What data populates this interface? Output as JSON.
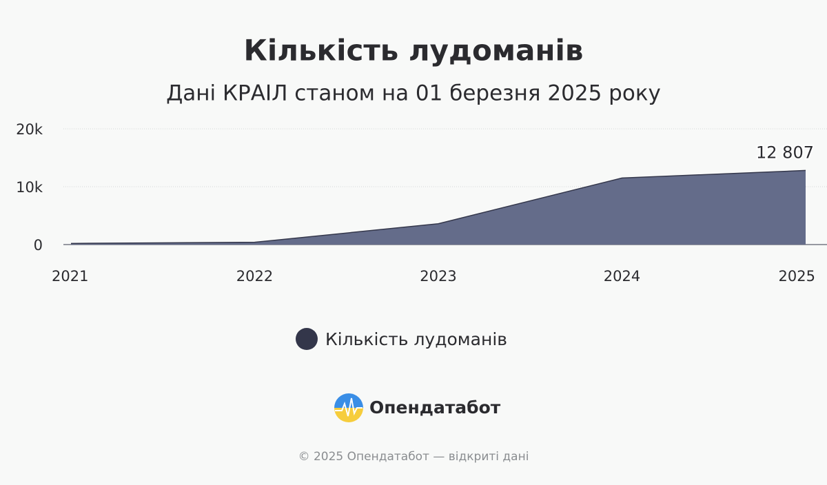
{
  "chart_data": {
    "type": "area",
    "title": "Кількість лудоманів",
    "subtitle": "Дані КРАІЛ станом на 01 березня 2025 року",
    "categories": [
      "2021",
      "2022",
      "2023",
      "2024",
      "2025"
    ],
    "series": [
      {
        "name": "Кількість лудоманів",
        "color": "#646c8a",
        "line_color": "#33364a",
        "values": [
          200,
          400,
          3600,
          11500,
          12807
        ],
        "value_labels": [
          null,
          null,
          null,
          null,
          "12 807"
        ]
      }
    ],
    "ylim": [
      0,
      20000
    ],
    "yticks": [
      0,
      {
        "value": 10000,
        "label": "10k"
      },
      {
        "value": 20000,
        "label": "20k"
      }
    ],
    "grid": true,
    "legend": "bottom"
  },
  "branding": {
    "logo": "Опендатабот",
    "footer": "© 2025 Опендатабот — відкриті дані"
  }
}
